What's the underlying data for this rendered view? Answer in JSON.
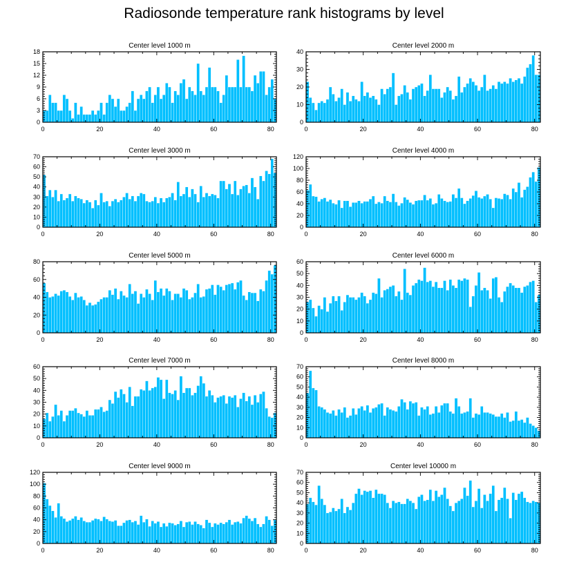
{
  "title": "Radiosonde temperature rank histograms by level",
  "chart_data": [
    {
      "type": "bar",
      "title": "Center level 1000 m",
      "xlim": [
        0,
        82
      ],
      "ylim": [
        0,
        18
      ],
      "xticks": [
        0,
        20,
        40,
        60,
        80
      ],
      "yticks": [
        0,
        3,
        6,
        9,
        12,
        15,
        18
      ],
      "values": [
        3,
        3,
        7,
        5,
        5,
        3,
        3,
        7,
        6,
        3,
        1,
        5,
        2,
        4,
        2,
        2,
        2,
        3,
        2,
        3,
        5,
        2,
        5,
        7,
        6,
        4,
        6,
        3,
        3,
        4,
        5,
        8,
        3,
        6,
        7,
        6,
        8,
        9,
        5,
        7,
        9,
        6,
        7,
        10,
        9,
        5,
        8,
        7,
        10,
        11,
        6,
        9,
        8,
        7,
        15,
        8,
        7,
        9,
        14,
        9,
        9,
        8,
        5,
        7,
        12,
        9,
        9,
        9,
        16,
        9,
        17,
        9,
        9,
        8,
        12,
        10,
        13,
        13,
        7,
        9,
        11,
        6
      ]
    },
    {
      "type": "bar",
      "title": "Center level 2000 m",
      "xlim": [
        0,
        82
      ],
      "ylim": [
        0,
        40
      ],
      "xticks": [
        0,
        20,
        40,
        60,
        80
      ],
      "yticks": [
        0,
        10,
        20,
        30,
        40
      ],
      "values": [
        23,
        14,
        11,
        7,
        11,
        12,
        11,
        13,
        20,
        16,
        12,
        14,
        19,
        10,
        17,
        12,
        15,
        13,
        12,
        23,
        15,
        17,
        14,
        15,
        13,
        10,
        19,
        16,
        19,
        20,
        28,
        10,
        15,
        16,
        21,
        17,
        13,
        19,
        20,
        21,
        22,
        15,
        18,
        27,
        19,
        19,
        19,
        14,
        17,
        20,
        18,
        13,
        15,
        26,
        17,
        20,
        22,
        25,
        23,
        21,
        18,
        20,
        27,
        18,
        19,
        21,
        19,
        23,
        22,
        23,
        22,
        25,
        23,
        24,
        25,
        22,
        26,
        31,
        33,
        38,
        27,
        27
      ]
    },
    {
      "type": "bar",
      "title": "Center level 3000 m",
      "xlim": [
        0,
        82
      ],
      "ylim": [
        0,
        70
      ],
      "xticks": [
        0,
        20,
        40,
        60,
        80
      ],
      "yticks": [
        0,
        10,
        20,
        30,
        40,
        50,
        60,
        70
      ],
      "values": [
        52,
        31,
        37,
        30,
        37,
        26,
        33,
        27,
        29,
        33,
        26,
        31,
        29,
        28,
        24,
        27,
        25,
        19,
        27,
        22,
        34,
        25,
        26,
        21,
        26,
        28,
        25,
        27,
        30,
        34,
        28,
        31,
        26,
        31,
        34,
        33,
        26,
        25,
        26,
        30,
        24,
        29,
        25,
        29,
        30,
        34,
        27,
        45,
        31,
        33,
        40,
        30,
        38,
        33,
        25,
        41,
        30,
        34,
        31,
        33,
        32,
        29,
        46,
        46,
        38,
        43,
        33,
        46,
        32,
        38,
        41,
        42,
        34,
        49,
        40,
        28,
        51,
        46,
        56,
        53,
        68,
        54
      ]
    },
    {
      "type": "bar",
      "title": "Center level 4000 m",
      "xlim": [
        0,
        82
      ],
      "ylim": [
        0,
        120
      ],
      "xticks": [
        0,
        20,
        40,
        60,
        80
      ],
      "yticks": [
        0,
        20,
        40,
        60,
        80,
        100,
        120
      ],
      "values": [
        63,
        73,
        53,
        52,
        44,
        48,
        50,
        44,
        47,
        41,
        39,
        46,
        33,
        45,
        45,
        35,
        42,
        42,
        45,
        41,
        44,
        44,
        48,
        53,
        40,
        43,
        41,
        53,
        45,
        43,
        57,
        43,
        37,
        41,
        51,
        47,
        42,
        39,
        45,
        46,
        46,
        55,
        46,
        49,
        39,
        41,
        56,
        49,
        45,
        43,
        44,
        56,
        50,
        66,
        50,
        40,
        45,
        49,
        54,
        62,
        51,
        49,
        53,
        56,
        48,
        33,
        50,
        49,
        48,
        57,
        55,
        48,
        66,
        60,
        76,
        51,
        64,
        69,
        85,
        94,
        78,
        102
      ]
    },
    {
      "type": "bar",
      "title": "Center level 5000 m",
      "xlim": [
        0,
        82
      ],
      "ylim": [
        0,
        80
      ],
      "xticks": [
        0,
        20,
        40,
        60,
        80
      ],
      "yticks": [
        0,
        20,
        40,
        60,
        80
      ],
      "values": [
        56,
        46,
        40,
        41,
        44,
        42,
        47,
        48,
        46,
        41,
        37,
        45,
        40,
        41,
        37,
        31,
        34,
        31,
        32,
        35,
        38,
        40,
        40,
        48,
        43,
        50,
        38,
        47,
        42,
        40,
        55,
        44,
        47,
        33,
        44,
        40,
        49,
        44,
        37,
        59,
        46,
        50,
        42,
        50,
        47,
        37,
        44,
        44,
        40,
        50,
        48,
        38,
        40,
        45,
        55,
        40,
        41,
        49,
        50,
        54,
        43,
        54,
        52,
        48,
        54,
        55,
        56,
        49,
        57,
        59,
        42,
        37,
        46,
        45,
        45,
        36,
        49,
        47,
        59,
        70,
        66,
        76
      ]
    },
    {
      "type": "bar",
      "title": "Center level 6000 m",
      "xlim": [
        0,
        82
      ],
      "ylim": [
        0,
        60
      ],
      "xticks": [
        0,
        20,
        40,
        60,
        80
      ],
      "yticks": [
        0,
        10,
        20,
        30,
        40,
        50,
        60
      ],
      "values": [
        26,
        28,
        21,
        14,
        23,
        20,
        30,
        18,
        25,
        31,
        27,
        31,
        19,
        26,
        32,
        30,
        30,
        28,
        30,
        34,
        31,
        25,
        28,
        34,
        33,
        46,
        30,
        36,
        37,
        39,
        40,
        31,
        35,
        28,
        54,
        34,
        32,
        40,
        42,
        45,
        44,
        55,
        43,
        44,
        39,
        43,
        38,
        38,
        44,
        36,
        45,
        40,
        38,
        45,
        44,
        46,
        45,
        22,
        31,
        40,
        51,
        36,
        38,
        36,
        29,
        46,
        47,
        30,
        26,
        35,
        39,
        42,
        40,
        38,
        38,
        34,
        39,
        40,
        43,
        44,
        26,
        32
      ]
    },
    {
      "type": "bar",
      "title": "Center level 7000 m",
      "xlim": [
        0,
        82
      ],
      "ylim": [
        0,
        60
      ],
      "xticks": [
        0,
        20,
        40,
        60,
        80
      ],
      "yticks": [
        0,
        10,
        20,
        30,
        40,
        50,
        60
      ],
      "values": [
        16,
        21,
        14,
        18,
        28,
        19,
        23,
        14,
        19,
        23,
        23,
        25,
        21,
        20,
        18,
        23,
        19,
        19,
        24,
        24,
        26,
        22,
        23,
        32,
        29,
        39,
        34,
        41,
        37,
        30,
        43,
        27,
        35,
        35,
        41,
        40,
        48,
        40,
        42,
        43,
        51,
        49,
        33,
        49,
        38,
        37,
        40,
        32,
        52,
        38,
        42,
        42,
        36,
        38,
        44,
        52,
        46,
        35,
        40,
        36,
        30,
        34,
        35,
        36,
        29,
        35,
        34,
        36,
        26,
        33,
        38,
        31,
        35,
        28,
        36,
        30,
        37,
        39,
        25,
        18,
        17,
        21
      ]
    },
    {
      "type": "bar",
      "title": "Center level 8000 m",
      "xlim": [
        0,
        82
      ],
      "ylim": [
        0,
        70
      ],
      "xticks": [
        0,
        20,
        40,
        60,
        80
      ],
      "yticks": [
        0,
        10,
        20,
        30,
        40,
        50,
        60,
        70
      ],
      "values": [
        44,
        66,
        49,
        47,
        31,
        30,
        28,
        25,
        24,
        27,
        22,
        28,
        25,
        30,
        20,
        22,
        29,
        23,
        29,
        31,
        27,
        32,
        25,
        29,
        30,
        33,
        34,
        22,
        30,
        28,
        27,
        26,
        31,
        38,
        35,
        28,
        36,
        34,
        35,
        22,
        30,
        28,
        31,
        23,
        24,
        31,
        25,
        32,
        34,
        34,
        26,
        24,
        39,
        31,
        24,
        25,
        26,
        39,
        20,
        24,
        23,
        31,
        25,
        25,
        24,
        23,
        21,
        21,
        24,
        20,
        25,
        16,
        17,
        26,
        17,
        18,
        15,
        20,
        14,
        12,
        10,
        7
      ]
    },
    {
      "type": "bar",
      "title": "Center level 9000 m",
      "xlim": [
        0,
        82
      ],
      "ylim": [
        0,
        120
      ],
      "xticks": [
        0,
        20,
        40,
        60,
        80
      ],
      "yticks": [
        0,
        20,
        40,
        60,
        80,
        100,
        120
      ],
      "values": [
        102,
        75,
        64,
        55,
        44,
        68,
        46,
        42,
        37,
        39,
        42,
        46,
        40,
        44,
        38,
        36,
        36,
        39,
        42,
        41,
        38,
        45,
        41,
        38,
        37,
        39,
        30,
        30,
        35,
        39,
        40,
        36,
        38,
        32,
        47,
        36,
        41,
        29,
        38,
        34,
        37,
        28,
        34,
        29,
        35,
        34,
        31,
        33,
        38,
        28,
        36,
        37,
        32,
        37,
        33,
        31,
        26,
        40,
        35,
        28,
        34,
        32,
        35,
        33,
        36,
        40,
        32,
        36,
        37,
        34,
        43,
        47,
        42,
        38,
        43,
        33,
        28,
        33,
        46,
        40,
        30,
        40
      ]
    },
    {
      "type": "bar",
      "title": "Center level 10000 m",
      "xlim": [
        0,
        82
      ],
      "ylim": [
        0,
        70
      ],
      "xticks": [
        0,
        20,
        40,
        60,
        80
      ],
      "yticks": [
        0,
        10,
        20,
        30,
        40,
        50,
        60,
        70
      ],
      "values": [
        39,
        45,
        41,
        38,
        57,
        44,
        38,
        30,
        31,
        35,
        32,
        34,
        44,
        30,
        36,
        33,
        40,
        49,
        54,
        48,
        52,
        51,
        52,
        45,
        53,
        49,
        49,
        48,
        40,
        35,
        42,
        40,
        41,
        39,
        39,
        44,
        42,
        40,
        34,
        46,
        48,
        42,
        43,
        53,
        42,
        52,
        46,
        48,
        55,
        44,
        37,
        32,
        40,
        42,
        44,
        55,
        47,
        62,
        36,
        42,
        54,
        35,
        48,
        42,
        49,
        57,
        32,
        43,
        45,
        55,
        44,
        25,
        50,
        43,
        49,
        51,
        45,
        41,
        40,
        42,
        41,
        40
      ]
    }
  ]
}
